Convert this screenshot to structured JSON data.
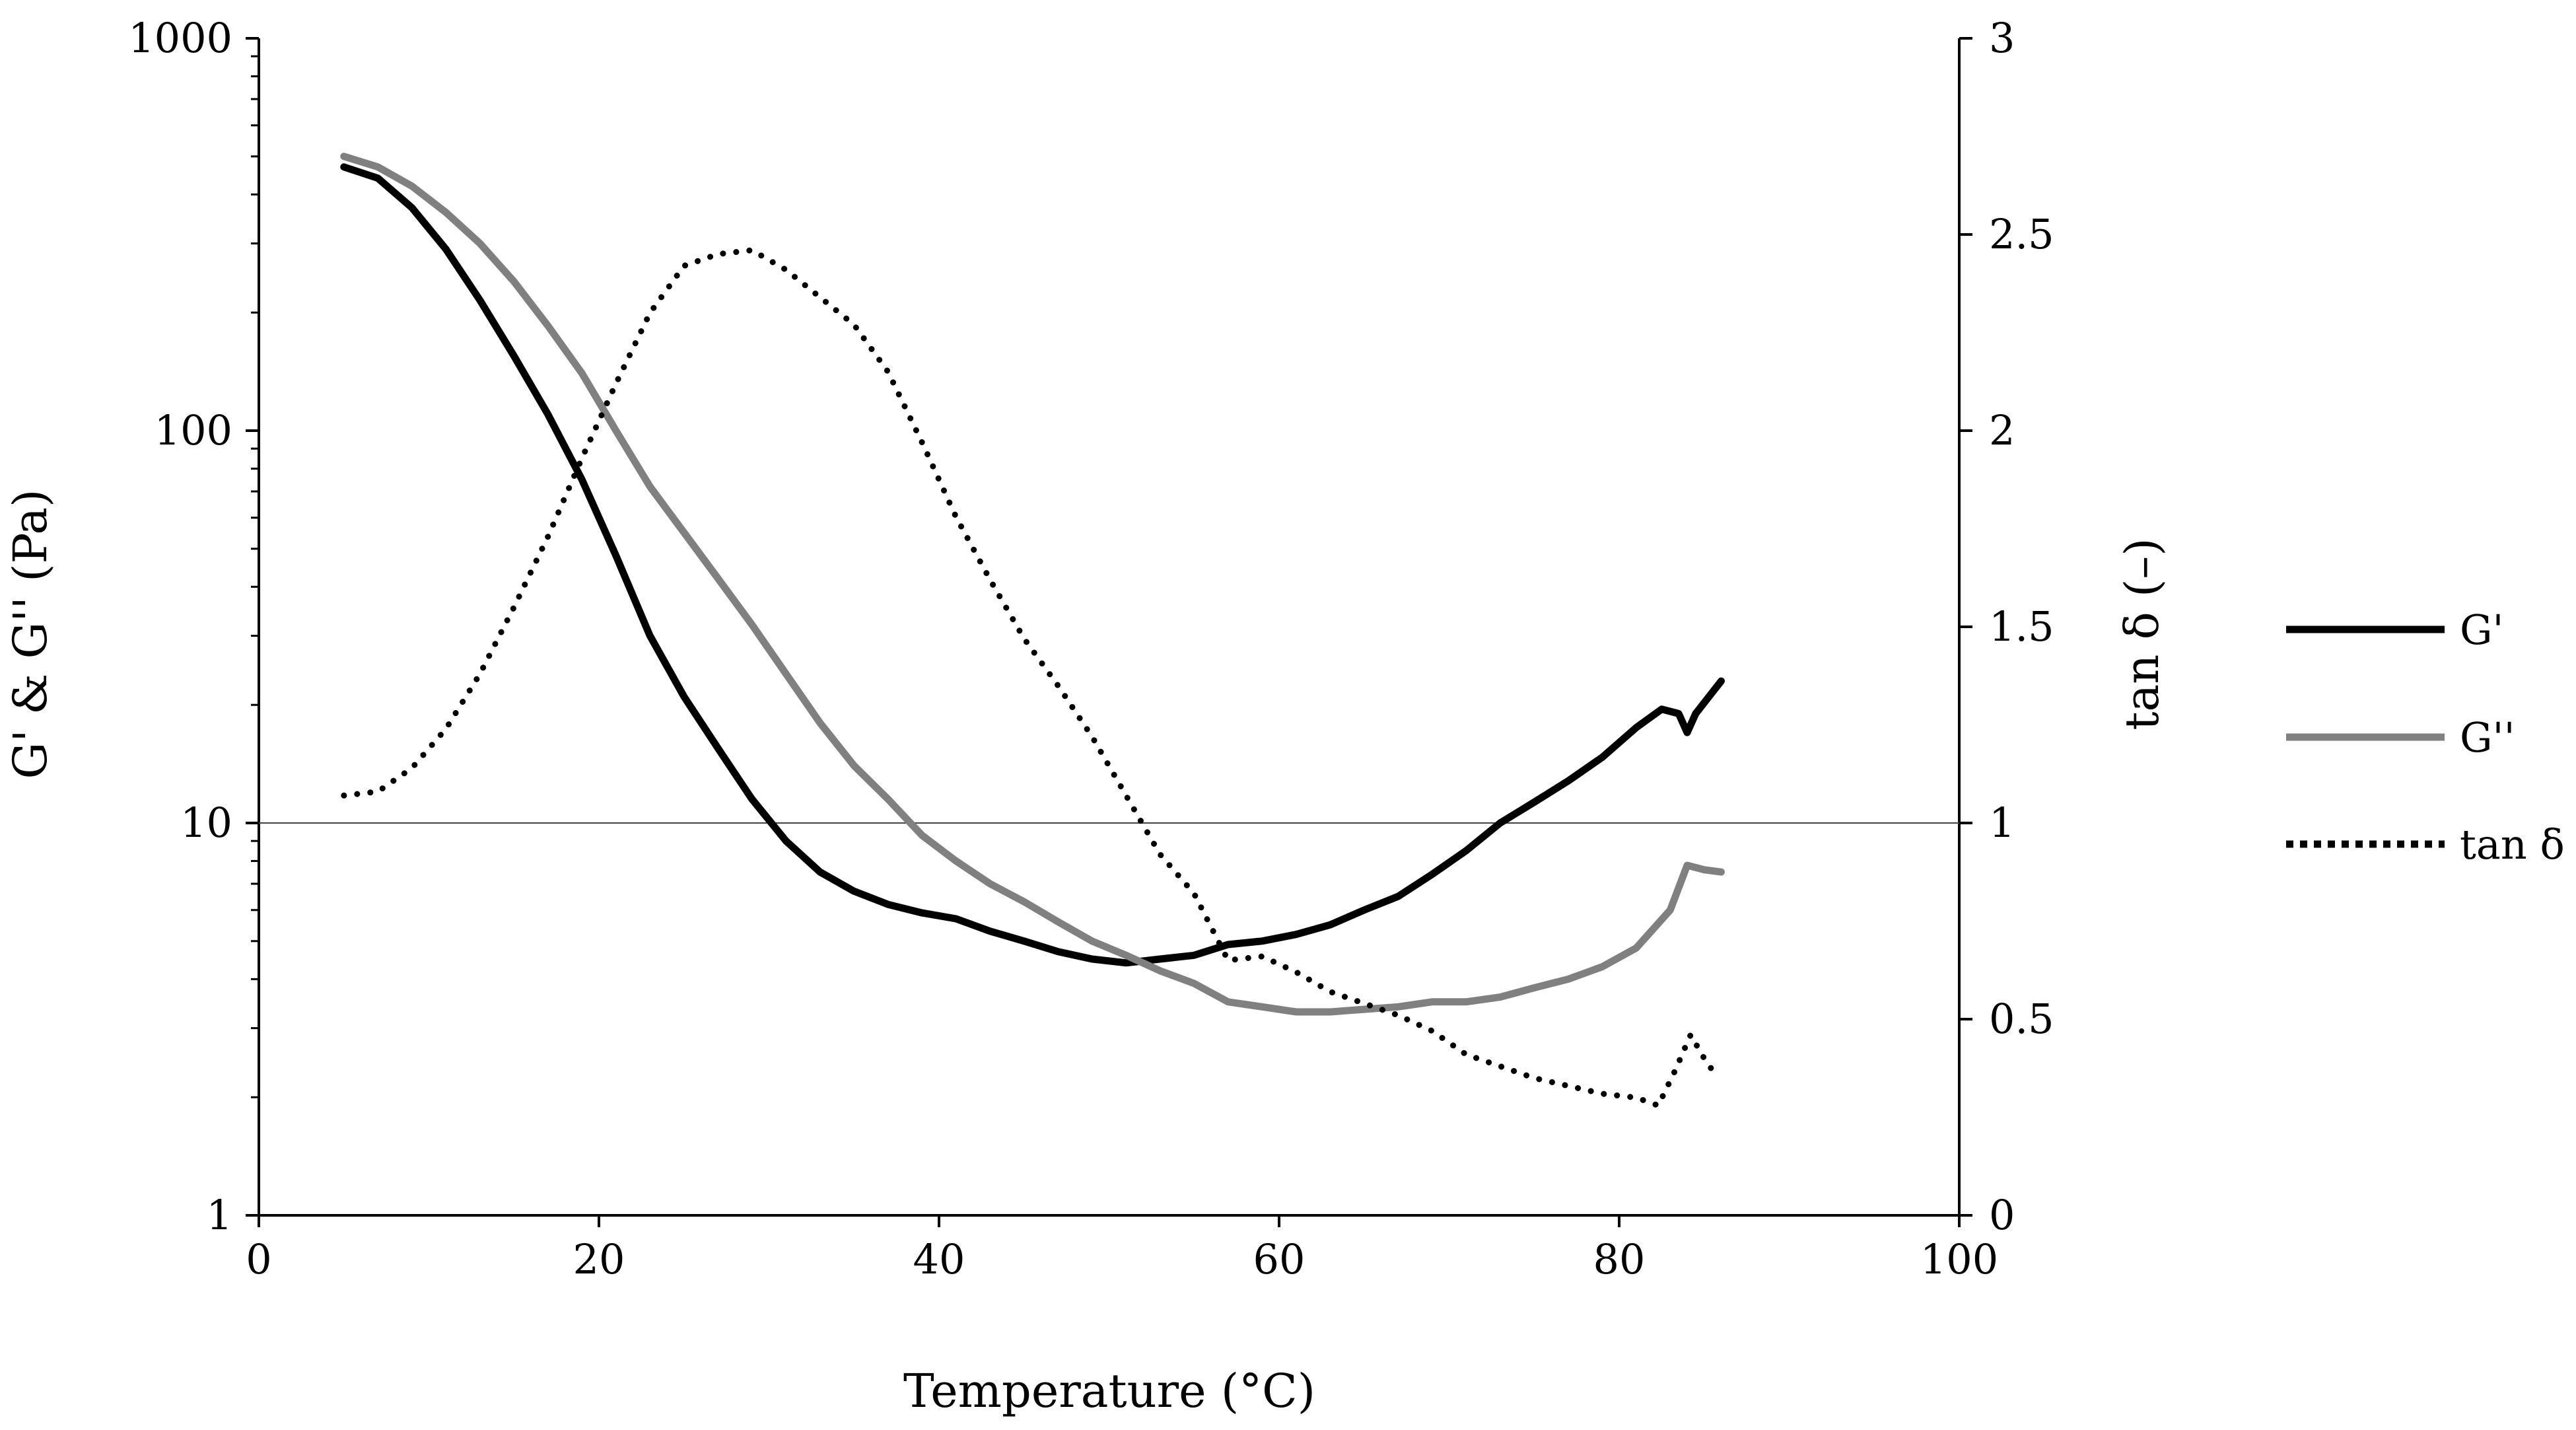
{
  "chart_data": {
    "type": "line",
    "title": "",
    "xlabel": "Temperature (°C)",
    "ylabel_left": "G' & G'' (Pa)",
    "ylabel_right": "tan δ (–)",
    "xlim": [
      0,
      100
    ],
    "ylim_left": [
      1,
      1000
    ],
    "yscale_left": "log",
    "ylim_right": [
      0,
      3
    ],
    "x_ticks": [
      0,
      20,
      40,
      60,
      80,
      100
    ],
    "y_left_ticks": [
      1,
      10,
      100,
      1000
    ],
    "y_right_ticks": [
      0,
      0.5,
      1,
      1.5,
      2,
      2.5,
      3
    ],
    "grid": false,
    "reference_line": {
      "axis": "left",
      "value": 10
    },
    "legend_position": "right",
    "series": [
      {
        "name": "G'",
        "axis": "left",
        "style": "solid",
        "color": "#000000",
        "x": [
          5,
          7,
          9,
          11,
          13,
          15,
          17,
          19,
          21,
          23,
          25,
          27,
          29,
          31,
          33,
          35,
          37,
          39,
          41,
          43,
          45,
          47,
          49,
          51,
          53,
          55,
          57,
          59,
          61,
          63,
          65,
          67,
          69,
          71,
          73,
          75,
          77,
          79,
          81,
          82.5,
          83.5,
          84,
          84.5,
          86
        ],
        "y": [
          470,
          440,
          370,
          290,
          215,
          155,
          110,
          75,
          48,
          30,
          21,
          15.5,
          11.5,
          9,
          7.5,
          6.7,
          6.2,
          5.9,
          5.7,
          5.3,
          5.0,
          4.7,
          4.5,
          4.4,
          4.5,
          4.6,
          4.9,
          5.0,
          5.2,
          5.5,
          6.0,
          6.5,
          7.4,
          8.5,
          10,
          11.3,
          12.8,
          14.7,
          17.5,
          19.5,
          19,
          17,
          19,
          23
        ]
      },
      {
        "name": "G''",
        "axis": "left",
        "style": "solid",
        "color": "#808080",
        "x": [
          5,
          7,
          9,
          11,
          13,
          15,
          17,
          19,
          21,
          23,
          25,
          27,
          29,
          31,
          33,
          35,
          37,
          39,
          41,
          43,
          45,
          47,
          49,
          51,
          53,
          55,
          57,
          59,
          61,
          63,
          65,
          67,
          69,
          71,
          73,
          75,
          77,
          79,
          81,
          83,
          84,
          85,
          86
        ],
        "y": [
          500,
          470,
          420,
          360,
          300,
          240,
          185,
          140,
          100,
          72,
          55,
          42,
          32,
          24,
          18,
          14,
          11.5,
          9.3,
          8,
          7,
          6.3,
          5.6,
          5.0,
          4.6,
          4.2,
          3.9,
          3.5,
          3.4,
          3.3,
          3.3,
          3.35,
          3.4,
          3.5,
          3.5,
          3.6,
          3.8,
          4.0,
          4.3,
          4.8,
          6.0,
          7.8,
          7.6,
          7.5
        ]
      },
      {
        "name": "tan δ",
        "axis": "right",
        "style": "dotted",
        "color": "#000000",
        "x": [
          5,
          7,
          9,
          11,
          13,
          15,
          17,
          19,
          21,
          23,
          25,
          27,
          29,
          31,
          33,
          35,
          37,
          39,
          41,
          43,
          45,
          47,
          49,
          51,
          53,
          55,
          57,
          59,
          61,
          63,
          65,
          67,
          69,
          71,
          73,
          75,
          77,
          79,
          81,
          82.3,
          83.3,
          84.2,
          85,
          85.8
        ],
        "y": [
          1.07,
          1.08,
          1.14,
          1.24,
          1.38,
          1.55,
          1.73,
          1.93,
          2.12,
          2.3,
          2.42,
          2.45,
          2.46,
          2.41,
          2.34,
          2.27,
          2.15,
          1.97,
          1.78,
          1.62,
          1.47,
          1.35,
          1.22,
          1.07,
          0.92,
          0.82,
          0.65,
          0.66,
          0.62,
          0.57,
          0.54,
          0.51,
          0.47,
          0.41,
          0.38,
          0.35,
          0.33,
          0.31,
          0.3,
          0.28,
          0.37,
          0.46,
          0.4,
          0.35
        ]
      }
    ]
  }
}
